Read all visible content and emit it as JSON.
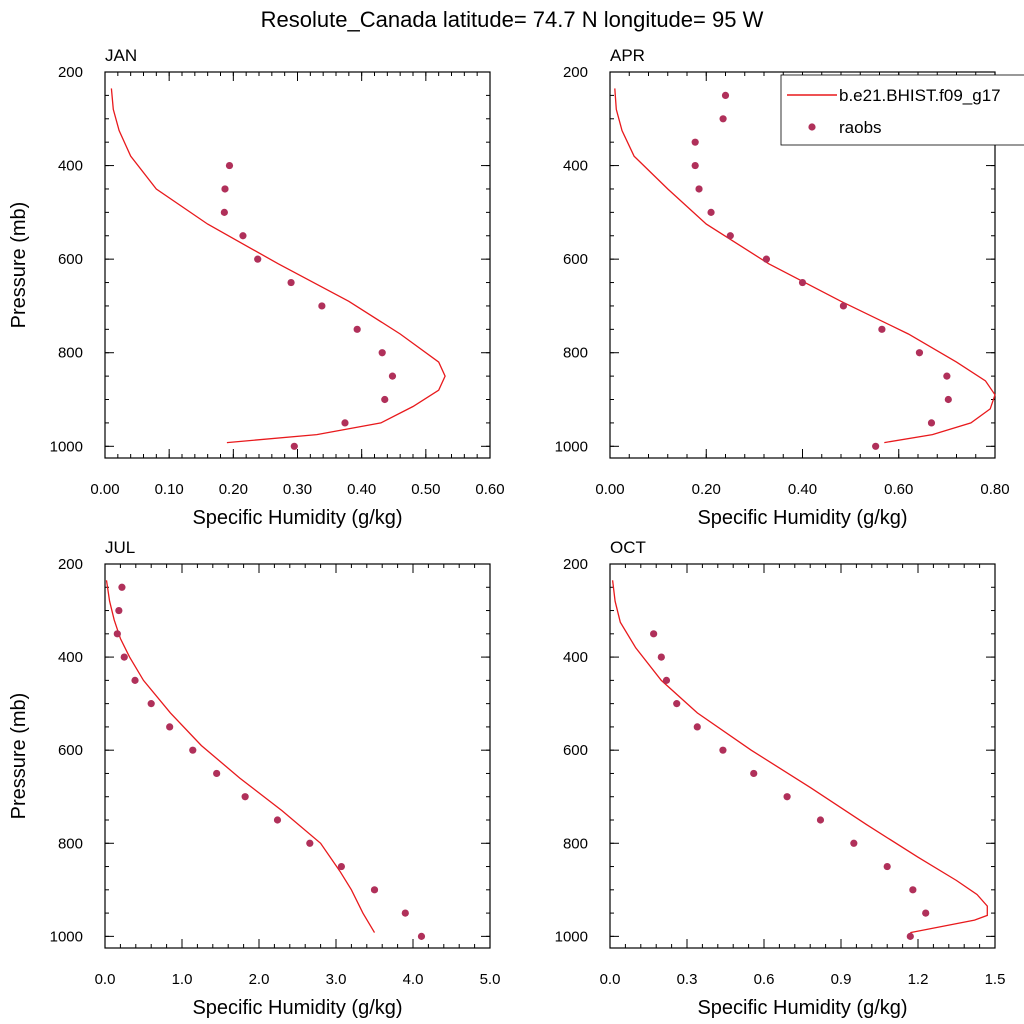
{
  "title": "Resolute_Canada  latitude= 74.7 N longitude= 95 W",
  "legend": {
    "model_label": "b.e21.BHIST.f09_g17",
    "obs_label": "raobs",
    "model_color": "#e8191c",
    "obs_color": "#b0305a"
  },
  "chart_data": [
    {
      "type": "line",
      "title": "JAN",
      "xlabel": "Specific Humidity (g/kg)",
      "ylabel": "Pressure (mb)",
      "xlim": [
        0,
        0.6
      ],
      "ylim": [
        200,
        1025
      ],
      "y_reversed": true,
      "xticks": [
        0,
        0.1,
        0.2,
        0.3,
        0.4,
        0.5,
        0.6
      ],
      "xtick_labels": [
        "0.00",
        "0.10",
        "0.20",
        "0.30",
        "0.40",
        "0.50",
        "0.60"
      ],
      "yticks": [
        200,
        400,
        600,
        800,
        1000
      ],
      "ytick_labels": [
        "200",
        "400",
        "600",
        "800",
        "1000"
      ],
      "model": {
        "x": [
          0.01,
          0.013,
          0.022,
          0.04,
          0.08,
          0.16,
          0.27,
          0.38,
          0.46,
          0.52,
          0.53,
          0.52,
          0.48,
          0.43,
          0.33,
          0.19
        ],
        "y": [
          235,
          280,
          325,
          380,
          450,
          525,
          610,
          690,
          760,
          820,
          850,
          880,
          915,
          950,
          975,
          992
        ]
      },
      "obs": {
        "x": [
          0.194,
          0.187,
          0.186,
          0.215,
          0.238,
          0.29,
          0.338,
          0.393,
          0.432,
          0.448,
          0.436,
          0.374,
          0.295
        ],
        "y": [
          400,
          450,
          500,
          550,
          600,
          650,
          700,
          750,
          800,
          850,
          900,
          950,
          1000
        ]
      }
    },
    {
      "type": "line",
      "title": "APR",
      "xlabel": "Specific Humidity (g/kg)",
      "ylabel": "",
      "xlim": [
        0,
        0.8
      ],
      "ylim": [
        200,
        1025
      ],
      "y_reversed": true,
      "xticks": [
        0,
        0.2,
        0.4,
        0.6,
        0.8
      ],
      "xtick_labels": [
        "0.00",
        "0.20",
        "0.40",
        "0.60",
        "0.80"
      ],
      "yticks": [
        200,
        400,
        600,
        800,
        1000
      ],
      "ytick_labels": [
        "200",
        "400",
        "600",
        "800",
        "1000"
      ],
      "model": {
        "x": [
          0.01,
          0.013,
          0.025,
          0.05,
          0.12,
          0.2,
          0.33,
          0.48,
          0.62,
          0.72,
          0.78,
          0.8,
          0.79,
          0.75,
          0.67,
          0.57
        ],
        "y": [
          235,
          280,
          325,
          380,
          450,
          525,
          610,
          690,
          760,
          820,
          860,
          890,
          920,
          950,
          975,
          992
        ]
      },
      "obs": {
        "x": [
          0.24,
          0.235,
          0.177,
          0.177,
          0.185,
          0.21,
          0.25,
          0.325,
          0.4,
          0.485,
          0.565,
          0.643,
          0.7,
          0.703,
          0.668,
          0.552
        ],
        "y": [
          250,
          300,
          350,
          400,
          450,
          500,
          550,
          600,
          650,
          700,
          750,
          800,
          850,
          900,
          950,
          1000
        ]
      }
    },
    {
      "type": "line",
      "title": "JUL",
      "xlabel": "Specific Humidity (g/kg)",
      "ylabel": "Pressure (mb)",
      "xlim": [
        0,
        5
      ],
      "ylim": [
        200,
        1025
      ],
      "y_reversed": true,
      "xticks": [
        0,
        1,
        2,
        3,
        4,
        5
      ],
      "xtick_labels": [
        "0.0",
        "1.0",
        "2.0",
        "3.0",
        "4.0",
        "5.0"
      ],
      "yticks": [
        200,
        400,
        600,
        800,
        1000
      ],
      "ytick_labels": [
        "200",
        "400",
        "600",
        "800",
        "1000"
      ],
      "model": {
        "x": [
          0.02,
          0.06,
          0.12,
          0.2,
          0.32,
          0.5,
          0.85,
          1.25,
          1.75,
          2.3,
          2.8,
          3.05,
          3.2,
          3.35,
          3.5
        ],
        "y": [
          235,
          280,
          320,
          360,
          400,
          450,
          520,
          590,
          660,
          730,
          800,
          860,
          900,
          950,
          992
        ]
      },
      "obs": {
        "x": [
          0.22,
          0.18,
          0.16,
          0.25,
          0.39,
          0.6,
          0.84,
          1.14,
          1.45,
          1.82,
          2.24,
          2.66,
          3.07,
          3.5,
          3.9,
          4.11
        ],
        "y": [
          250,
          300,
          350,
          400,
          450,
          500,
          550,
          600,
          650,
          700,
          750,
          800,
          850,
          900,
          950,
          1000
        ]
      }
    },
    {
      "type": "line",
      "title": "OCT",
      "xlabel": "Specific Humidity (g/kg)",
      "ylabel": "",
      "xlim": [
        0,
        1.5
      ],
      "ylim": [
        200,
        1025
      ],
      "y_reversed": true,
      "xticks": [
        0,
        0.3,
        0.6,
        0.9,
        1.2,
        1.5
      ],
      "xtick_labels": [
        "0.0",
        "0.3",
        "0.6",
        "0.9",
        "1.2",
        "1.5"
      ],
      "yticks": [
        200,
        400,
        600,
        800,
        1000
      ],
      "ytick_labels": [
        "200",
        "400",
        "600",
        "800",
        "1000"
      ],
      "model": {
        "x": [
          0.01,
          0.02,
          0.04,
          0.1,
          0.2,
          0.34,
          0.55,
          0.78,
          1.0,
          1.2,
          1.35,
          1.43,
          1.47,
          1.47,
          1.42,
          1.3,
          1.17
        ],
        "y": [
          235,
          280,
          325,
          380,
          450,
          520,
          600,
          680,
          760,
          830,
          880,
          910,
          935,
          955,
          965,
          978,
          992
        ]
      },
      "obs": {
        "x": [
          0.17,
          0.2,
          0.22,
          0.26,
          0.34,
          0.44,
          0.56,
          0.69,
          0.82,
          0.95,
          1.08,
          1.18,
          1.23,
          1.17
        ],
        "y": [
          350,
          400,
          450,
          500,
          550,
          600,
          650,
          700,
          750,
          800,
          850,
          900,
          950,
          1000
        ]
      }
    }
  ]
}
